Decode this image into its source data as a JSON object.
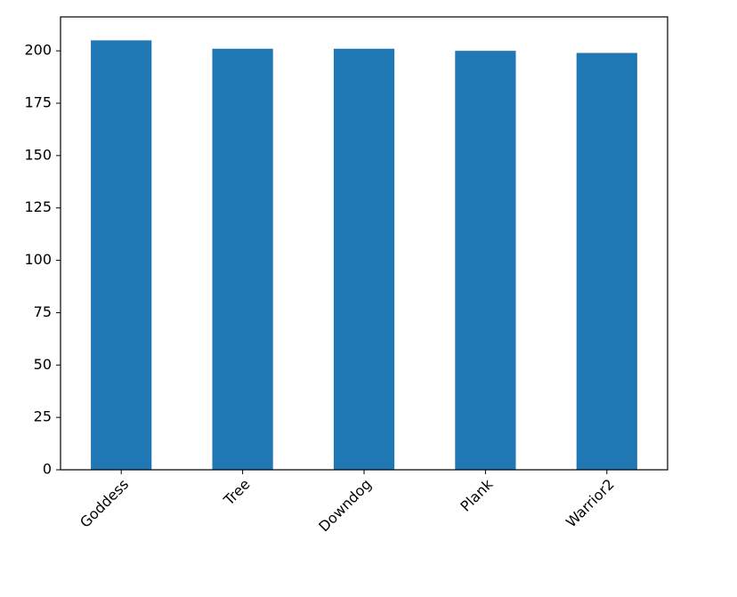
{
  "chart_data": {
    "type": "bar",
    "categories": [
      "Goddess",
      "Tree",
      "Downdog",
      "Plank",
      "Warrior2"
    ],
    "values": [
      205,
      201,
      201,
      200,
      199
    ],
    "color": "#1f77b4",
    "ylim": [
      0,
      216.2
    ],
    "yticks": [
      0,
      25,
      50,
      75,
      100,
      125,
      150,
      175,
      200
    ]
  }
}
